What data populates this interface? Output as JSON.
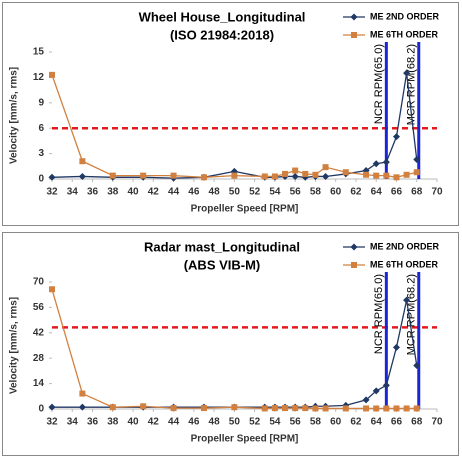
{
  "chart_data": [
    {
      "type": "line",
      "title": "Wheel House_Longitudinal",
      "subtitle": "(ISO 21984:2018)",
      "x_label": "Propeller Speed [RPM]",
      "y_label": "Velocity [mm/s, rms]",
      "x": [
        32,
        35,
        38,
        41,
        44,
        47,
        50,
        53,
        54,
        55,
        56,
        57,
        58,
        59,
        61,
        63,
        64,
        65,
        66,
        67,
        68
      ],
      "series": [
        {
          "name": "ME 2ND ORDER",
          "color": "#203864",
          "marker": "diamond",
          "values": [
            0.2,
            0.3,
            0.2,
            0.2,
            0.1,
            0.2,
            0.9,
            0.2,
            0.2,
            0.3,
            0.3,
            0.2,
            0.3,
            0.3,
            0.6,
            1.0,
            1.8,
            2.0,
            5.0,
            12.5,
            2.3
          ]
        },
        {
          "name": "ME 6TH ORDER",
          "color": "#d2803f",
          "marker": "square",
          "values": [
            12.3,
            2.1,
            0.4,
            0.4,
            0.4,
            0.2,
            0.4,
            0.3,
            0.3,
            0.6,
            1.0,
            0.6,
            0.5,
            1.4,
            0.8,
            0.5,
            0.4,
            0.4,
            0.2,
            0.5,
            0.8
          ]
        }
      ],
      "xlim": [
        32,
        70
      ],
      "xticks": [
        32,
        34,
        36,
        38,
        40,
        42,
        44,
        46,
        48,
        50,
        52,
        54,
        56,
        58,
        60,
        62,
        64,
        66,
        68,
        70
      ],
      "ylim": [
        0,
        15
      ],
      "yticks": [
        0,
        3,
        6,
        9,
        12,
        15
      ],
      "reference_line": {
        "value": 6,
        "color": "#e31a1c"
      },
      "vertical_lines": [
        {
          "value": 65.0,
          "label": "NCR RPM(65.0)",
          "color": "#1b24d6"
        },
        {
          "value": 68.2,
          "label": "MCR RPM(68.2)",
          "color": "#1b24d6"
        }
      ],
      "legend": "top-right"
    },
    {
      "type": "line",
      "title": "Radar mast_Longitudinal",
      "subtitle": "(ABS VIB-M)",
      "x_label": "Propeller Speed [RPM]",
      "y_label": "Velocity [mm/s, rms]",
      "x": [
        32,
        35,
        38,
        41,
        44,
        47,
        50,
        53,
        54,
        55,
        56,
        57,
        58,
        59,
        61,
        63,
        64,
        65,
        66,
        67,
        68
      ],
      "series": [
        {
          "name": "ME 2ND ORDER",
          "color": "#203864",
          "marker": "diamond",
          "values": [
            1,
            1,
            1,
            1,
            1,
            1,
            1,
            1,
            1,
            1,
            1,
            1,
            1.5,
            1.5,
            2,
            5,
            10,
            13,
            34,
            60,
            24
          ]
        },
        {
          "name": "ME 6TH ORDER",
          "color": "#d2803f",
          "marker": "square",
          "values": [
            66,
            8.5,
            1,
            1.5,
            0.5,
            0.5,
            1,
            0.3,
            0.5,
            0.5,
            0.5,
            0.5,
            0.3,
            0.3,
            0.3,
            0.3,
            0.3,
            0.3,
            0.3,
            0.3,
            0.3
          ]
        }
      ],
      "xlim": [
        32,
        70
      ],
      "xticks": [
        32,
        34,
        36,
        38,
        40,
        42,
        44,
        46,
        48,
        50,
        52,
        54,
        56,
        58,
        60,
        62,
        64,
        66,
        68,
        70
      ],
      "ylim": [
        0,
        70
      ],
      "yticks": [
        0,
        14,
        28,
        42,
        56,
        70
      ],
      "reference_line": {
        "value": 45,
        "color": "#e31a1c"
      },
      "vertical_lines": [
        {
          "value": 65.0,
          "label": "NCR RPM(65.0)",
          "color": "#1b24d6"
        },
        {
          "value": 68.2,
          "label": "MCR RPM(68.2)",
          "color": "#1b24d6"
        }
      ],
      "legend": "top-right"
    }
  ]
}
